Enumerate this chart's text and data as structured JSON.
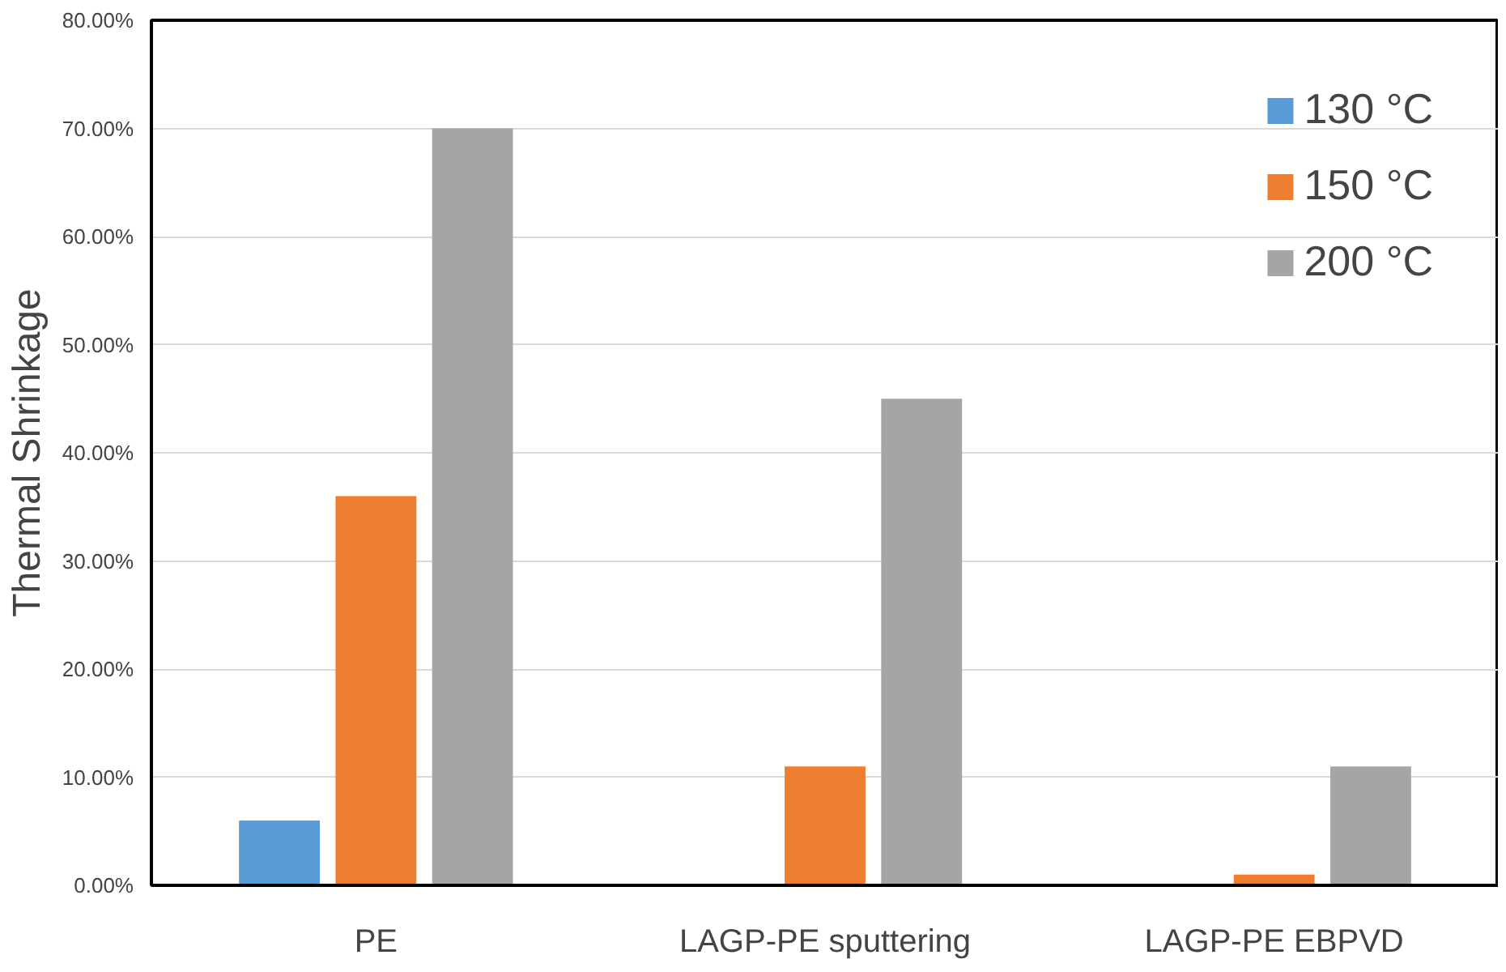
{
  "chart_data": {
    "type": "bar",
    "ylabel": "Thermal Shrinkage",
    "categories": [
      "PE",
      "LAGP-PE sputtering",
      "LAGP-PE EBPVD"
    ],
    "series": [
      {
        "name": "130 °C",
        "color": "#5b9bd5",
        "values": [
          6,
          0,
          0
        ]
      },
      {
        "name": "150 °C",
        "color": "#ed7d31",
        "values": [
          36,
          11,
          1
        ]
      },
      {
        "name": "200 °C",
        "color": "#a5a5a5",
        "values": [
          70,
          45,
          11
        ]
      }
    ],
    "ylim": [
      0,
      80
    ],
    "yticks": [
      {
        "value": 0,
        "label": "0.00%"
      },
      {
        "value": 10,
        "label": "10.00%"
      },
      {
        "value": 20,
        "label": "20.00%"
      },
      {
        "value": 30,
        "label": "30.00%"
      },
      {
        "value": 40,
        "label": "40.00%"
      },
      {
        "value": 50,
        "label": "50.00%"
      },
      {
        "value": 60,
        "label": "60.00%"
      },
      {
        "value": 70,
        "label": "70.00%"
      },
      {
        "value": 80,
        "label": "80.00%"
      }
    ],
    "grid": "y",
    "legend": "top right"
  }
}
